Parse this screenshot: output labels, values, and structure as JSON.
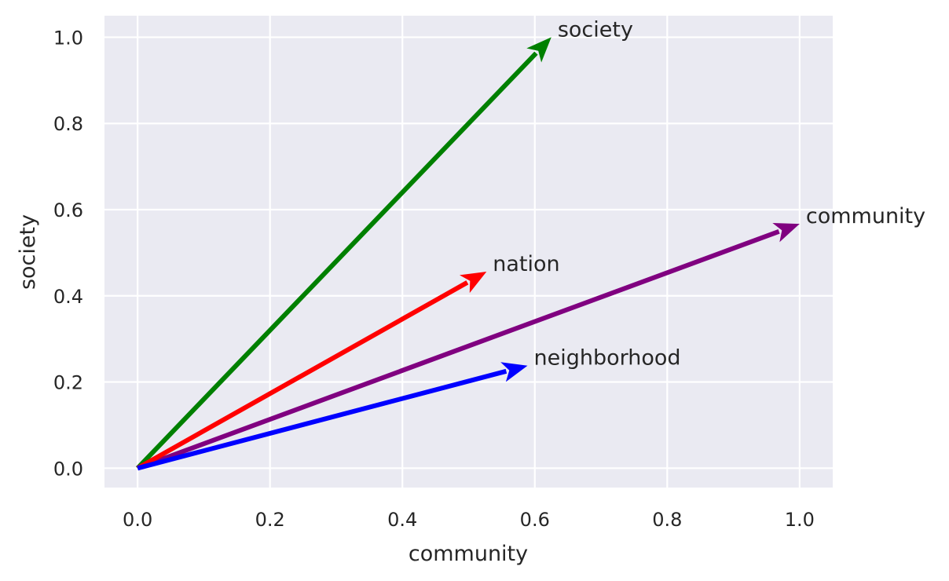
{
  "chart_data": {
    "type": "quiver",
    "xlabel": "community",
    "ylabel": "society",
    "xlim": [
      -0.05,
      1.05
    ],
    "ylim": [
      -0.045,
      1.05
    ],
    "xticks": [
      0.0,
      0.2,
      0.4,
      0.6,
      0.8,
      1.0
    ],
    "yticks": [
      0.0,
      0.2,
      0.4,
      0.6,
      0.8,
      1.0
    ],
    "xtick_labels": [
      "0.0",
      "0.2",
      "0.4",
      "0.6",
      "0.8",
      "1.0"
    ],
    "ytick_labels": [
      "0.0",
      "0.2",
      "0.4",
      "0.6",
      "0.8",
      "1.0"
    ],
    "grid": true,
    "background_color": "#eaeaf2",
    "grid_color": "#ffffff",
    "vectors": [
      {
        "label": "community",
        "x": 1.0,
        "y": 0.567,
        "color": "#800080"
      },
      {
        "label": "society",
        "x": 0.625,
        "y": 1.0,
        "color": "#008000"
      },
      {
        "label": "nation",
        "x": 0.527,
        "y": 0.456,
        "color": "#ff0000"
      },
      {
        "label": "neighborhood",
        "x": 0.589,
        "y": 0.238,
        "color": "#0000ff"
      }
    ]
  }
}
